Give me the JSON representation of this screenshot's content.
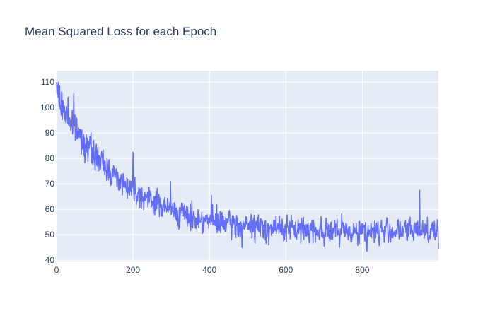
{
  "chart_data": {
    "type": "line",
    "title": "Mean Squared Loss for each Epoch",
    "xlabel": "",
    "ylabel": "",
    "xlim": [
      0,
      999
    ],
    "ylim": [
      39.5,
      114.5
    ],
    "x_ticks": [
      0,
      200,
      400,
      600,
      800
    ],
    "y_ticks": [
      40,
      50,
      60,
      70,
      80,
      90,
      100,
      110
    ],
    "grid": true,
    "legend": "none",
    "colors": {
      "line": "#636efa",
      "plot_bg": "#e5ecf6",
      "grid": "#ffffff",
      "text": "#2a3f5f"
    },
    "series": [
      {
        "x": [
          0,
          20,
          40,
          60,
          80,
          100,
          120,
          140,
          160,
          180,
          200,
          220,
          240,
          260,
          280,
          300,
          320,
          340,
          360,
          380,
          400,
          420,
          440,
          460,
          480,
          500,
          520,
          540,
          560,
          580,
          600,
          620,
          640,
          660,
          680,
          700,
          720,
          740,
          760,
          780,
          800,
          820,
          840,
          860,
          880,
          900,
          920,
          940,
          960,
          980,
          999
        ],
        "values": [
          106,
          99,
          93,
          89,
          85,
          81,
          78,
          75,
          72,
          70,
          68,
          66,
          64,
          63,
          61,
          60,
          58.5,
          57.5,
          56.5,
          56,
          55.5,
          55,
          54.5,
          54,
          53.5,
          53.5,
          53,
          53,
          52.5,
          52.5,
          52.5,
          52,
          52,
          52,
          52,
          52,
          51.5,
          51.5,
          51.5,
          51.5,
          51.5,
          51.5,
          51.5,
          51.5,
          51.5,
          51.5,
          51.5,
          52,
          52,
          52,
          52
        ],
        "spread": [
          4.5,
          4.5,
          4.5,
          4.5,
          4.5,
          4.5,
          4.5,
          4,
          4,
          4,
          4,
          4,
          4,
          4,
          4,
          4,
          4,
          4,
          4,
          4,
          4,
          4,
          4,
          4,
          4,
          4,
          4,
          4,
          4,
          4,
          4,
          4,
          4,
          4,
          4,
          4,
          4,
          4,
          4,
          4,
          4,
          4,
          4,
          4,
          4,
          4,
          4,
          4,
          4,
          4,
          4
        ],
        "spikes": [
          [
            0,
            110
          ],
          [
            5,
            110
          ],
          [
            12,
            97
          ],
          [
            30,
            104
          ],
          [
            45,
            105.5
          ],
          [
            200,
            82.5
          ],
          [
            298,
            71
          ],
          [
            405,
            65.5
          ],
          [
            485,
            45
          ],
          [
            555,
            46
          ],
          [
            700,
            45.5
          ],
          [
            740,
            45
          ],
          [
            812,
            43.5
          ],
          [
            950,
            67.5
          ],
          [
            999,
            44.5
          ]
        ]
      }
    ]
  }
}
